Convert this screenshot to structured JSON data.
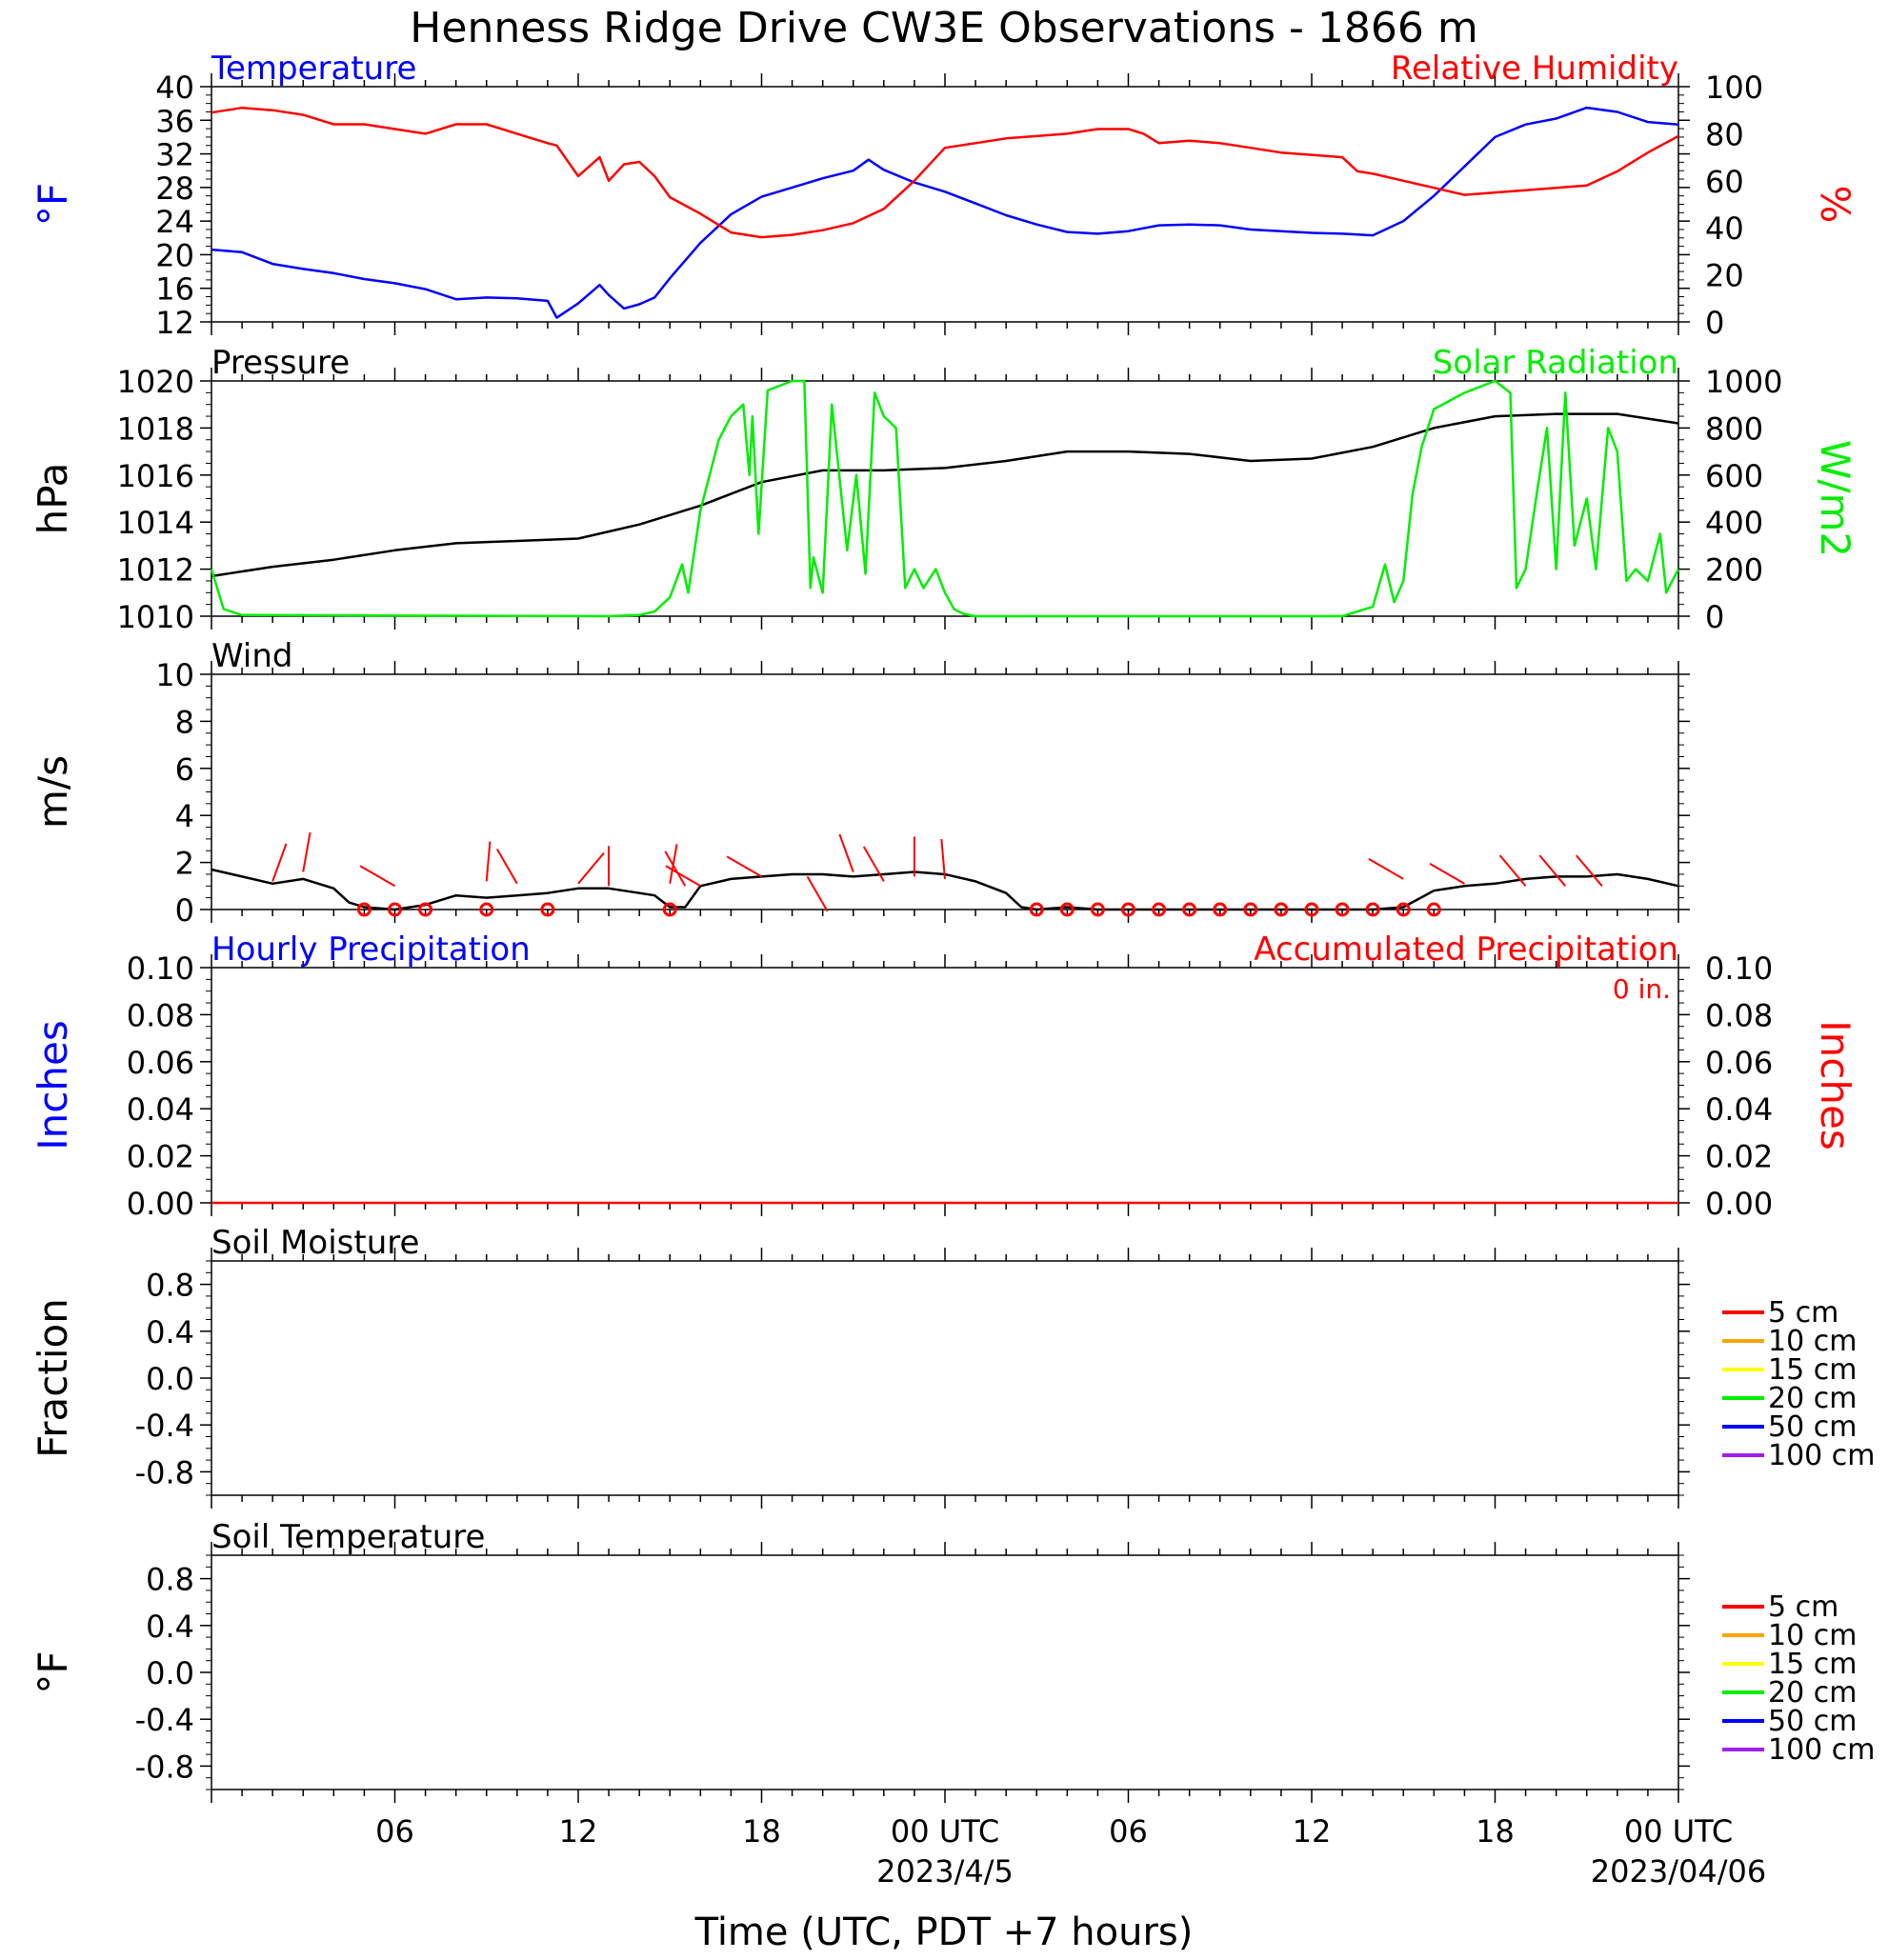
{
  "title": "Henness Ridge Drive CW3E Observations - 1866 m",
  "x_axis": {
    "label": "Time (UTC, PDT +7 hours)",
    "tick_labels": [
      "06",
      "12",
      "18",
      "00 UTC",
      "06",
      "12",
      "18",
      "00 UTC"
    ],
    "date_labels": [
      "2023/4/5",
      "2023/04/06"
    ]
  },
  "colors": {
    "blue": "#0000ff",
    "red": "#ff0000",
    "green": "#00ee00",
    "black": "#000000",
    "orange": "#ffa500",
    "yellow": "#ffff00",
    "purple": "#a020f0"
  },
  "chart_data": [
    {
      "type": "line",
      "panel": "temperature-humidity",
      "left_title": "Temperature",
      "right_title": "Relative Humidity",
      "ylabel_left": "°F",
      "ylabel_right": "%",
      "ylim_left": [
        12,
        40
      ],
      "ylim_right": [
        0,
        100
      ],
      "yticks_left": [
        "12",
        "16",
        "20",
        "24",
        "28",
        "32",
        "36",
        "40"
      ],
      "yticks_right": [
        "0",
        "20",
        "40",
        "60",
        "80",
        "100"
      ],
      "xlim_hours": [
        0,
        48
      ],
      "series": [
        {
          "name": "Temperature",
          "axis": "left",
          "color": "#0000ff",
          "x_hours": [
            0,
            1,
            2,
            3,
            4,
            5,
            6,
            7,
            8,
            9,
            10,
            11,
            11.3,
            12,
            12.7,
            13,
            13.5,
            14,
            14.5,
            15,
            16,
            17,
            18,
            19,
            20,
            21,
            21.5,
            22,
            23,
            24,
            25,
            26,
            27,
            28,
            29,
            30,
            31,
            32,
            33,
            34,
            35,
            36,
            37,
            38,
            39,
            40,
            41,
            42,
            43,
            44,
            45,
            46,
            47,
            48
          ],
          "values": [
            20.6,
            20.3,
            18.9,
            18.3,
            17.8,
            17.1,
            16.6,
            15.9,
            14.7,
            14.9,
            14.8,
            14.5,
            12.5,
            14.2,
            16.4,
            15.2,
            13.6,
            14.1,
            14.9,
            17.2,
            21.4,
            24.8,
            26.9,
            28.0,
            29.1,
            30.0,
            31.3,
            30.1,
            28.6,
            27.5,
            26.1,
            24.7,
            23.6,
            22.7,
            22.5,
            22.8,
            23.5,
            23.6,
            23.5,
            23.0,
            22.8,
            22.6,
            22.5,
            22.3,
            24.0,
            27.0,
            30.5,
            34.0,
            35.5,
            36.2,
            37.5,
            37.0,
            35.8,
            35.5
          ]
        },
        {
          "name": "Relative Humidity",
          "axis": "right",
          "color": "#ff0000",
          "x_hours": [
            0,
            1,
            2,
            3,
            4,
            5,
            6,
            7,
            8,
            9,
            10,
            11,
            11.3,
            12,
            12.7,
            13,
            13.5,
            14,
            14.5,
            15,
            16,
            17,
            18,
            19,
            20,
            21,
            22,
            23,
            24,
            25,
            26,
            27,
            28,
            29,
            30,
            30.5,
            31,
            32,
            33,
            34,
            35,
            36,
            37,
            37.5,
            38,
            39,
            40,
            41,
            42,
            43,
            44,
            45,
            46,
            47,
            48
          ],
          "values": [
            89,
            91,
            90,
            88,
            84,
            84,
            82,
            80,
            84,
            84,
            80,
            76,
            75,
            62,
            70,
            60,
            67,
            68,
            62,
            53,
            46,
            38,
            36,
            37,
            39,
            42,
            48,
            60,
            74,
            76,
            78,
            79,
            80,
            82,
            82,
            80,
            76,
            77,
            76,
            74,
            72,
            71,
            70,
            64,
            63,
            60,
            57,
            54,
            55,
            56,
            57,
            58,
            64,
            72,
            79
          ]
        }
      ]
    },
    {
      "type": "line",
      "panel": "pressure-solar",
      "left_title": "Pressure",
      "right_title": "Solar Radiation",
      "ylabel_left": "hPa",
      "ylabel_right": "W/m2",
      "ylim_left": [
        1010,
        1020
      ],
      "ylim_right": [
        0,
        1000
      ],
      "yticks_left": [
        "1010",
        "1012",
        "1014",
        "1016",
        "1018",
        "1020"
      ],
      "yticks_right": [
        "0",
        "200",
        "400",
        "600",
        "800",
        "1000"
      ],
      "xlim_hours": [
        0,
        48
      ],
      "series": [
        {
          "name": "Pressure",
          "axis": "left",
          "color": "#000000",
          "x_hours": [
            0,
            2,
            4,
            6,
            8,
            10,
            12,
            14,
            16,
            18,
            20,
            22,
            24,
            26,
            28,
            30,
            32,
            34,
            36,
            38,
            40,
            42,
            44,
            46,
            48
          ],
          "values": [
            1011.7,
            1012.1,
            1012.4,
            1012.8,
            1013.1,
            1013.2,
            1013.3,
            1013.9,
            1014.7,
            1015.7,
            1016.2,
            1016.2,
            1016.3,
            1016.6,
            1017.0,
            1017.0,
            1016.9,
            1016.6,
            1016.7,
            1017.2,
            1018.0,
            1018.5,
            1018.6,
            1018.6,
            1018.2
          ]
        },
        {
          "name": "Solar Radiation",
          "axis": "right",
          "color": "#00ee00",
          "x_hours": [
            0,
            0.4,
            1,
            13,
            14,
            14.5,
            15,
            15.4,
            15.6,
            16,
            16.6,
            17,
            17.4,
            17.6,
            17.7,
            17.9,
            18.2,
            19,
            19.4,
            19.6,
            19.7,
            20,
            20.3,
            20.8,
            21.1,
            21.4,
            21.7,
            22,
            22.4,
            22.7,
            23,
            23.3,
            23.7,
            24,
            24.3,
            24.6,
            25,
            25.5,
            26,
            26.5,
            37,
            38,
            38.4,
            38.7,
            39,
            39.3,
            39.6,
            40,
            41,
            42,
            42.5,
            42.7,
            43,
            43.4,
            43.7,
            44,
            44.3,
            44.6,
            45,
            45.3,
            45.7,
            46,
            46.3,
            46.6,
            47,
            47.4,
            47.6,
            48
          ],
          "values": [
            200,
            30,
            5,
            0,
            5,
            20,
            80,
            220,
            100,
            450,
            750,
            850,
            900,
            600,
            850,
            350,
            960,
            1000,
            1000,
            120,
            250,
            100,
            900,
            280,
            600,
            180,
            950,
            850,
            800,
            120,
            200,
            120,
            200,
            100,
            30,
            10,
            0,
            0,
            0,
            0,
            0,
            40,
            220,
            60,
            150,
            520,
            720,
            880,
            950,
            1000,
            950,
            120,
            200,
            550,
            800,
            200,
            950,
            300,
            500,
            200,
            800,
            700,
            150,
            200,
            150,
            350,
            100,
            200
          ]
        }
      ]
    },
    {
      "type": "line",
      "panel": "wind",
      "left_title": "Wind",
      "ylabel_left": "m/s",
      "ylim_left": [
        0,
        10
      ],
      "yticks_left": [
        "0",
        "2",
        "4",
        "6",
        "8",
        "10"
      ],
      "xlim_hours": [
        0,
        48
      ],
      "series": [
        {
          "name": "Wind speed",
          "axis": "left",
          "color": "#000000",
          "x_hours": [
            0,
            1,
            2,
            3,
            4,
            4.5,
            5,
            6,
            7,
            8,
            9,
            10,
            11,
            12,
            13,
            14,
            14.5,
            15,
            15.5,
            16,
            17,
            18,
            19,
            20,
            21,
            22,
            23,
            24,
            25,
            26,
            26.5,
            27,
            28,
            29,
            30,
            31,
            32,
            33,
            34,
            35,
            36,
            37,
            38,
            39,
            40,
            41,
            42,
            43,
            44,
            45,
            46,
            47,
            48
          ],
          "values": [
            1.7,
            1.4,
            1.1,
            1.3,
            0.9,
            0.3,
            0.1,
            0.0,
            0.2,
            0.6,
            0.5,
            0.6,
            0.7,
            0.9,
            0.9,
            0.7,
            0.6,
            0.1,
            0.1,
            1.0,
            1.3,
            1.4,
            1.5,
            1.5,
            1.4,
            1.5,
            1.6,
            1.5,
            1.2,
            0.7,
            0.1,
            0.0,
            0.1,
            0.0,
            0.0,
            0.0,
            0.0,
            0.0,
            0.0,
            0.0,
            0.0,
            0.0,
            0.0,
            0.1,
            0.8,
            1.0,
            1.1,
            1.3,
            1.4,
            1.4,
            1.5,
            1.3,
            1.0
          ]
        }
      ],
      "calm_markers_hours": [
        5,
        6,
        7,
        9,
        11,
        15,
        27,
        28,
        29,
        30,
        31,
        32,
        33,
        34,
        35,
        36,
        37,
        38,
        39,
        40
      ],
      "wind_barbs": [
        {
          "t": 2,
          "dir": 20,
          "speed": 1.2
        },
        {
          "t": 3,
          "dir": 10,
          "speed": 1.6
        },
        {
          "t": 6,
          "dir": 300,
          "speed": 1.0
        },
        {
          "t": 9,
          "dir": 5,
          "speed": 1.2
        },
        {
          "t": 10,
          "dir": 330,
          "speed": 1.1
        },
        {
          "t": 12,
          "dir": 40,
          "speed": 1.1
        },
        {
          "t": 13,
          "dir": 0,
          "speed": 1.0
        },
        {
          "t": 15,
          "dir": 10,
          "speed": 1.1
        },
        {
          "t": 15.5,
          "dir": 330,
          "speed": 1.0
        },
        {
          "t": 16,
          "dir": 300,
          "speed": 1.0
        },
        {
          "t": 18,
          "dir": 300,
          "speed": 1.4
        },
        {
          "t": 19.5,
          "dir": 150,
          "speed": 1.4
        },
        {
          "t": 21,
          "dir": 340,
          "speed": 1.6
        },
        {
          "t": 22,
          "dir": 330,
          "speed": 1.2
        },
        {
          "t": 23,
          "dir": 0,
          "speed": 1.4
        },
        {
          "t": 24,
          "dir": 355,
          "speed": 1.3
        },
        {
          "t": 39,
          "dir": 300,
          "speed": 1.3
        },
        {
          "t": 41,
          "dir": 300,
          "speed": 1.1
        },
        {
          "t": 43,
          "dir": 320,
          "speed": 1.0
        },
        {
          "t": 44.3,
          "dir": 320,
          "speed": 1.0
        },
        {
          "t": 45.5,
          "dir": 320,
          "speed": 1.0
        }
      ]
    },
    {
      "type": "line",
      "panel": "precipitation",
      "left_title": "Hourly Precipitation",
      "right_title": "Accumulated Precipitation",
      "annotation": "0 in.",
      "ylabel_left": "Inches",
      "ylabel_right": "Inches",
      "ylim_left": [
        0,
        0.1
      ],
      "ylim_right": [
        0,
        0.1
      ],
      "yticks_left": [
        "0.00",
        "0.02",
        "0.04",
        "0.06",
        "0.08",
        "0.10"
      ],
      "yticks_right": [
        "0.00",
        "0.02",
        "0.04",
        "0.06",
        "0.08",
        "0.10"
      ],
      "xlim_hours": [
        0,
        48
      ],
      "series": [
        {
          "name": "Accumulated Precipitation",
          "axis": "right",
          "color": "#ff0000",
          "x_hours": [
            0,
            48
          ],
          "values": [
            0,
            0
          ]
        }
      ]
    },
    {
      "type": "line",
      "panel": "soil-moisture",
      "left_title": "Soil Moisture",
      "ylabel_left": "Fraction",
      "ylim_left": [
        -1,
        1
      ],
      "yticks_left": [
        "-0.8",
        "-0.4",
        "0.0",
        "0.4",
        "0.8"
      ],
      "xlim_hours": [
        0,
        48
      ],
      "legend": [
        {
          "label": "5 cm",
          "color": "#ff0000"
        },
        {
          "label": "10 cm",
          "color": "#ffa500"
        },
        {
          "label": "15 cm",
          "color": "#ffff00"
        },
        {
          "label": "20 cm",
          "color": "#00ee00"
        },
        {
          "label": "50 cm",
          "color": "#0000ff"
        },
        {
          "label": "100 cm",
          "color": "#a020f0"
        }
      ],
      "series": []
    },
    {
      "type": "line",
      "panel": "soil-temperature",
      "left_title": "Soil Temperature",
      "ylabel_left": "°F",
      "ylim_left": [
        -1,
        1
      ],
      "yticks_left": [
        "-0.8",
        "-0.4",
        "0.0",
        "0.4",
        "0.8"
      ],
      "xlim_hours": [
        0,
        48
      ],
      "legend": [
        {
          "label": "5 cm",
          "color": "#ff0000"
        },
        {
          "label": "10 cm",
          "color": "#ffa500"
        },
        {
          "label": "15 cm",
          "color": "#ffff00"
        },
        {
          "label": "20 cm",
          "color": "#00ee00"
        },
        {
          "label": "50 cm",
          "color": "#0000ff"
        },
        {
          "label": "100 cm",
          "color": "#a020f0"
        }
      ],
      "series": []
    }
  ]
}
